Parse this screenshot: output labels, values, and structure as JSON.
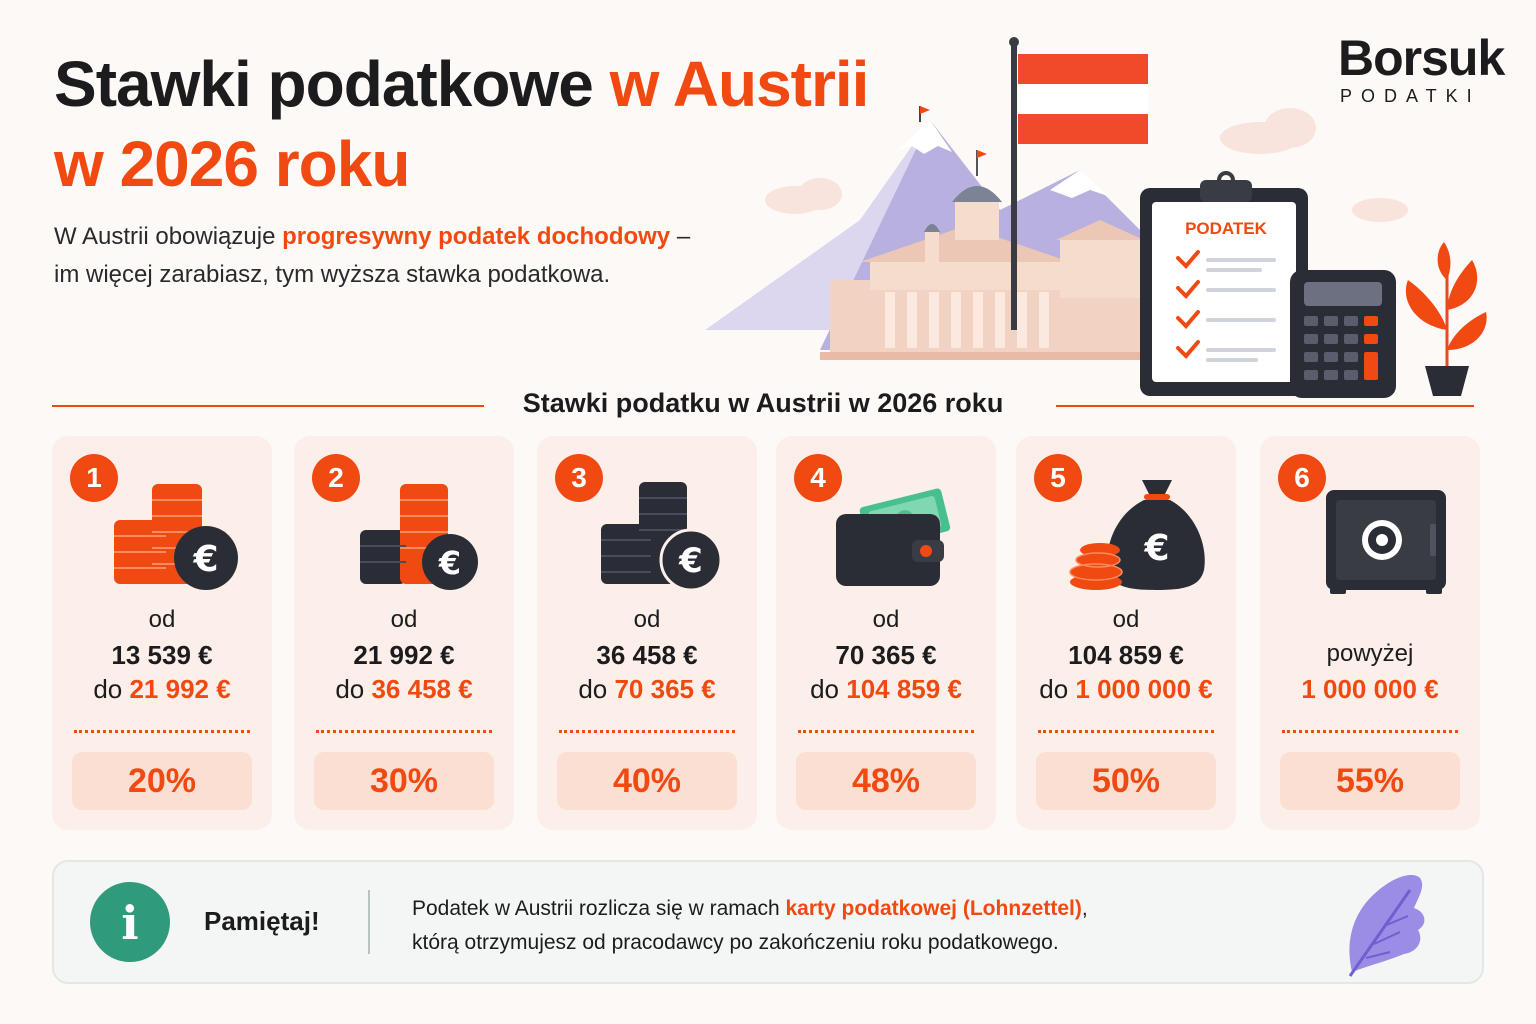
{
  "header": {
    "title_part1": "Stawki podatkowe ",
    "title_accent": "w Austrii",
    "title_line2": "w 2026 roku",
    "intro_part1": "W Austrii obowiązuje ",
    "intro_accent": "progresywny podatek dochodowy",
    "intro_part2": " –",
    "intro_line2": "im więcej zarabiasz, tym wyższa stawka podatkowa."
  },
  "logo": {
    "name": "Borsuk",
    "sub": "PODATKI"
  },
  "illustration": {
    "clipboard_label": "PODATEK"
  },
  "section": {
    "title": "Stawki podatku w Austrii w 2026 roku"
  },
  "brackets": [
    {
      "number": "1",
      "prefix": "od",
      "from": "13 539 €",
      "to_prefix": "do ",
      "to": "21 992 €",
      "rate": "20%",
      "icon": "coins-euro-icon"
    },
    {
      "number": "2",
      "prefix": "od",
      "from": "21 992 €",
      "to_prefix": "do ",
      "to": "36 458 €",
      "rate": "30%",
      "icon": "coins-euro-icon"
    },
    {
      "number": "3",
      "prefix": "od",
      "from": "36 458 €",
      "to_prefix": "do ",
      "to": "70 365 €",
      "rate": "40%",
      "icon": "coins-euro-icon"
    },
    {
      "number": "4",
      "prefix": "od",
      "from": "70 365 €",
      "to_prefix": "do ",
      "to": "104 859 €",
      "rate": "48%",
      "icon": "wallet-icon"
    },
    {
      "number": "5",
      "prefix": "od",
      "from": "104 859 €",
      "to_prefix": "do ",
      "to": "1 000 000 €",
      "rate": "50%",
      "icon": "money-bag-icon"
    },
    {
      "number": "6",
      "prefix": "",
      "from": "powyżej",
      "to_prefix": "",
      "to": "1 000 000 €",
      "rate": "55%",
      "icon": "safe-icon"
    }
  ],
  "note": {
    "icon_glyph": "i",
    "label": "Pamiętaj!",
    "text_part1": "Podatek w Austrii rozlicza się w ramach ",
    "text_accent": "karty podatkowej (Lohnzettel)",
    "text_part2": ",",
    "text_line2": "którą otrzymujesz od pracodawcy po zakończeniu roku podatkowego."
  },
  "colors": {
    "accent": "#f04a12",
    "dark": "#2b2d36",
    "info": "#2f9a7c",
    "card_bg": "#fcefe9"
  }
}
